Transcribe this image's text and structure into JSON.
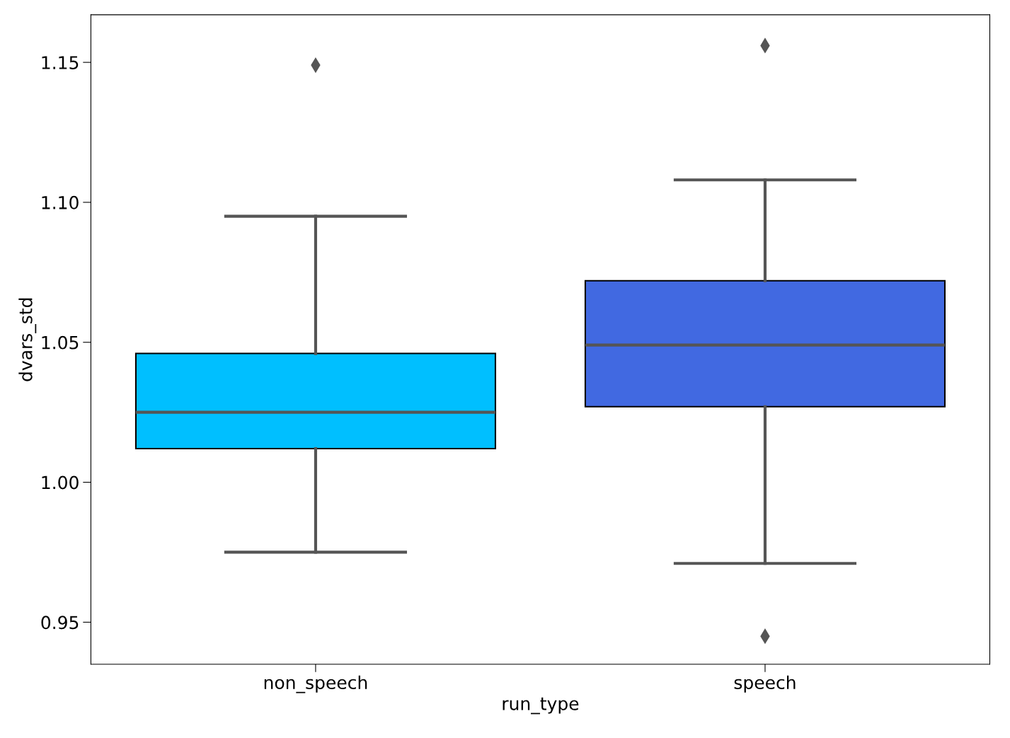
{
  "chart_data": {
    "type": "box",
    "xlabel": "run_type",
    "ylabel": "dvars_std",
    "categories": [
      "non_speech",
      "speech"
    ],
    "colors": [
      "#00bfff",
      "#4169e1"
    ],
    "boxes": [
      {
        "low": 0.975,
        "q1": 1.012,
        "median": 1.025,
        "q3": 1.046,
        "high": 1.095,
        "outliers": [
          1.149
        ]
      },
      {
        "low": 0.971,
        "q1": 1.027,
        "median": 1.049,
        "q3": 1.072,
        "high": 1.108,
        "outliers": [
          1.156,
          0.945
        ]
      }
    ],
    "ylim": [
      0.935,
      1.167
    ],
    "yticks": [
      0.95,
      {
        "value": 1.0,
        "label": "1.00"
      },
      1.05,
      {
        "value": 1.1,
        "label": "1.10"
      },
      1.15
    ],
    "grid": false,
    "legend": false
  }
}
